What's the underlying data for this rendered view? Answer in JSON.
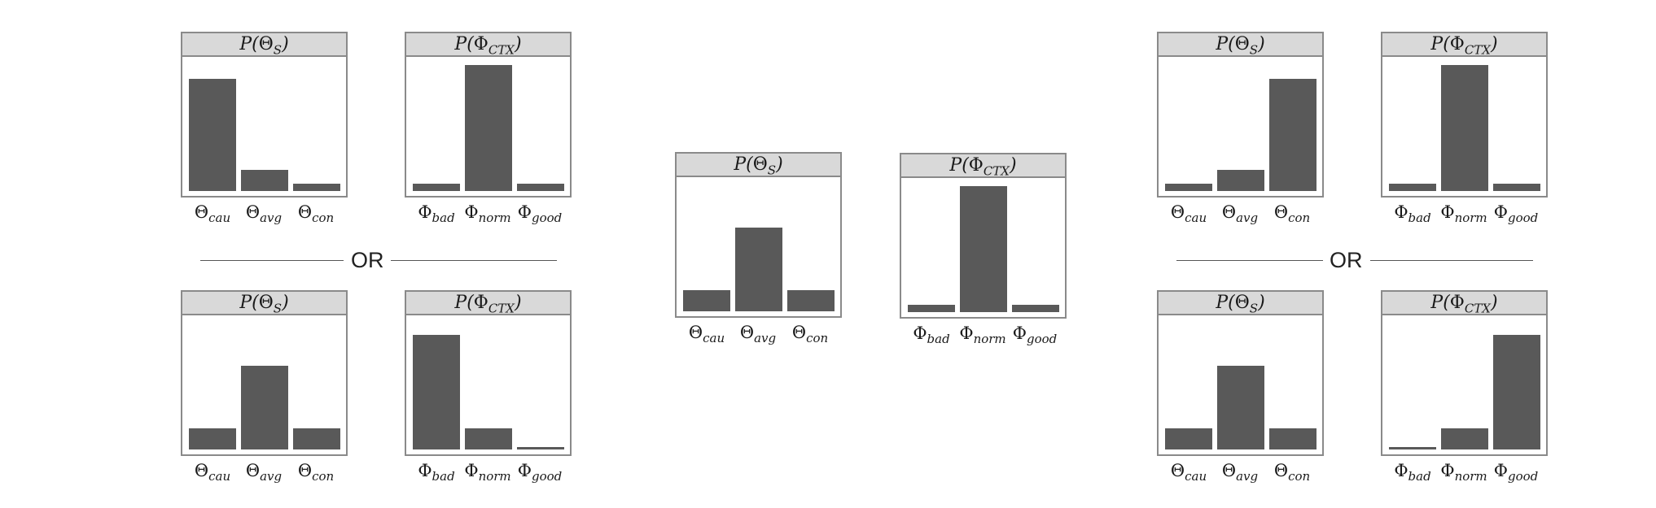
{
  "or_label": "OR",
  "chart_data": [
    {
      "id": "L1-theta",
      "type": "bar",
      "title": "P(Θ_S)",
      "categories": [
        "Θ_cau",
        "Θ_avg",
        "Θ_con"
      ],
      "values": [
        0.8,
        0.15,
        0.05
      ],
      "ylim": [
        0,
        0.9
      ]
    },
    {
      "id": "L1-phi",
      "type": "bar",
      "title": "P(Φ_CTX)",
      "categories": [
        "Φ_bad",
        "Φ_norm",
        "Φ_good"
      ],
      "values": [
        0.05,
        0.9,
        0.05
      ],
      "ylim": [
        0,
        0.9
      ]
    },
    {
      "id": "L2-theta",
      "type": "bar",
      "title": "P(Θ_S)",
      "categories": [
        "Θ_cau",
        "Θ_avg",
        "Θ_con"
      ],
      "values": [
        0.15,
        0.6,
        0.15
      ],
      "ylim": [
        0,
        0.9
      ]
    },
    {
      "id": "L2-phi",
      "type": "bar",
      "title": "P(Φ_CTX)",
      "categories": [
        "Φ_bad",
        "Φ_norm",
        "Φ_good"
      ],
      "values": [
        0.82,
        0.15,
        0.02
      ],
      "ylim": [
        0,
        0.9
      ]
    },
    {
      "id": "M-theta",
      "type": "bar",
      "title": "P(Θ_S)",
      "categories": [
        "Θ_cau",
        "Θ_avg",
        "Θ_con"
      ],
      "values": [
        0.15,
        0.6,
        0.15
      ],
      "ylim": [
        0,
        0.9
      ]
    },
    {
      "id": "M-phi",
      "type": "bar",
      "title": "P(Φ_CTX)",
      "categories": [
        "Φ_bad",
        "Φ_norm",
        "Φ_good"
      ],
      "values": [
        0.05,
        0.9,
        0.05
      ],
      "ylim": [
        0,
        0.9
      ]
    },
    {
      "id": "R1-theta",
      "type": "bar",
      "title": "P(Θ_S)",
      "categories": [
        "Θ_cau",
        "Θ_avg",
        "Θ_con"
      ],
      "values": [
        0.05,
        0.15,
        0.8
      ],
      "ylim": [
        0,
        0.9
      ]
    },
    {
      "id": "R1-phi",
      "type": "bar",
      "title": "P(Φ_CTX)",
      "categories": [
        "Φ_bad",
        "Φ_norm",
        "Φ_good"
      ],
      "values": [
        0.05,
        0.9,
        0.05
      ],
      "ylim": [
        0,
        0.9
      ]
    },
    {
      "id": "R2-theta",
      "type": "bar",
      "title": "P(Θ_S)",
      "categories": [
        "Θ_cau",
        "Θ_avg",
        "Θ_con"
      ],
      "values": [
        0.15,
        0.6,
        0.15
      ],
      "ylim": [
        0,
        0.9
      ]
    },
    {
      "id": "R2-phi",
      "type": "bar",
      "title": "P(Φ_CTX)",
      "categories": [
        "Φ_bad",
        "Φ_norm",
        "Φ_good"
      ],
      "values": [
        0.02,
        0.15,
        0.82
      ],
      "ylim": [
        0,
        0.9
      ]
    }
  ]
}
